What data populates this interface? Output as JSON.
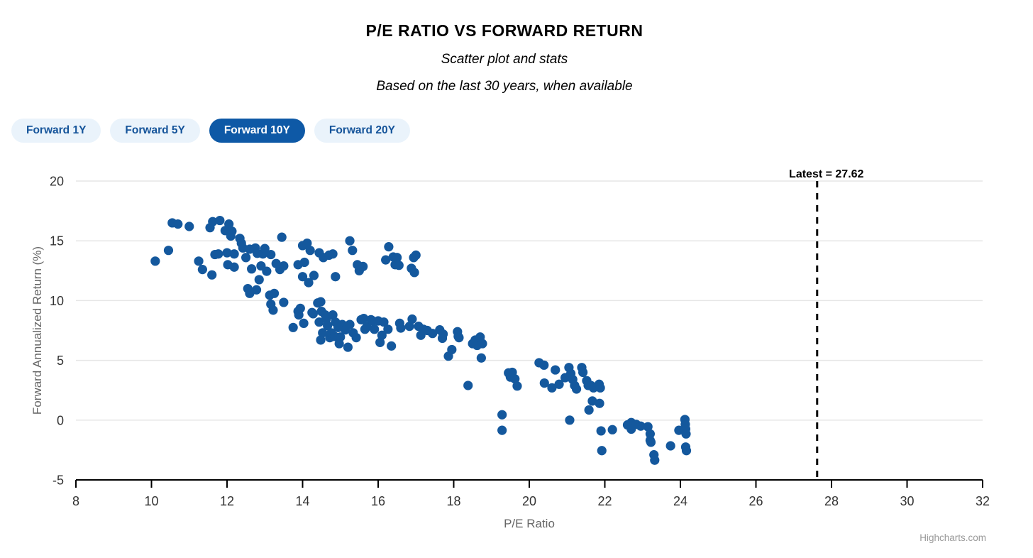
{
  "header": {
    "title": "P/E RATIO VS FORWARD RETURN",
    "subtitle1": "Scatter plot and stats",
    "subtitle2": "Based on the last 30 years, when available"
  },
  "toolbar": {
    "buttons": [
      {
        "label": "Forward 1Y",
        "selected": false
      },
      {
        "label": "Forward 5Y",
        "selected": false
      },
      {
        "label": "Forward 10Y",
        "selected": true
      },
      {
        "label": "Forward 20Y",
        "selected": false
      }
    ]
  },
  "colors": {
    "point": "#14589d",
    "button_selected_bg": "#0e59a6",
    "button_bg": "#eaf3fb",
    "button_text": "#15549a",
    "gridline": "#e6e6e6",
    "axis_line": "#000000",
    "tick_label": "#333333",
    "axis_title": "#666666",
    "plotline": "#000000",
    "credits": "#999999"
  },
  "credits_label": "Highcharts.com",
  "chart_data": {
    "type": "scatter",
    "title": "P/E RATIO VS FORWARD RETURN",
    "xlabel": "P/E Ratio",
    "ylabel": "Forward Annualized Return (%)",
    "xlim": [
      8,
      32
    ],
    "ylim": [
      -5,
      20
    ],
    "x_ticks": [
      8,
      10,
      12,
      14,
      16,
      18,
      20,
      22,
      24,
      26,
      28,
      30,
      32
    ],
    "y_ticks": [
      -5,
      0,
      5,
      10,
      15,
      20
    ],
    "grid": "horizontal-only",
    "legend": "none",
    "plotline": {
      "value": 27.62,
      "label": "Latest = 27.62",
      "style": "dashed"
    },
    "points": [
      [
        10.1,
        13.3
      ],
      [
        10.45,
        14.2
      ],
      [
        10.55,
        16.5
      ],
      [
        10.7,
        16.4
      ],
      [
        11.0,
        16.2
      ],
      [
        11.25,
        13.3
      ],
      [
        11.35,
        12.6
      ],
      [
        11.55,
        16.1
      ],
      [
        11.6,
        12.15
      ],
      [
        11.62,
        16.6
      ],
      [
        11.68,
        13.85
      ],
      [
        11.77,
        13.9
      ],
      [
        11.81,
        16.7
      ],
      [
        11.95,
        15.85
      ],
      [
        12.0,
        14.0
      ],
      [
        12.02,
        13.0
      ],
      [
        12.05,
        16.4
      ],
      [
        12.1,
        15.4
      ],
      [
        12.13,
        15.8
      ],
      [
        12.19,
        13.9
      ],
      [
        12.19,
        12.8
      ],
      [
        12.34,
        15.2
      ],
      [
        12.38,
        14.8
      ],
      [
        12.42,
        14.4
      ],
      [
        12.5,
        13.6
      ],
      [
        12.55,
        11.0
      ],
      [
        12.6,
        14.3
      ],
      [
        12.6,
        10.6
      ],
      [
        12.65,
        12.65
      ],
      [
        12.75,
        14.4
      ],
      [
        12.78,
        10.9
      ],
      [
        12.8,
        13.95
      ],
      [
        12.85,
        11.75
      ],
      [
        12.9,
        12.9
      ],
      [
        12.95,
        13.9
      ],
      [
        13.0,
        14.35
      ],
      [
        13.05,
        12.45
      ],
      [
        13.13,
        10.45
      ],
      [
        13.16,
        13.85
      ],
      [
        13.16,
        9.7
      ],
      [
        13.22,
        9.2
      ],
      [
        13.25,
        10.6
      ],
      [
        13.3,
        13.1
      ],
      [
        13.4,
        12.6
      ],
      [
        13.45,
        15.3
      ],
      [
        13.5,
        9.85
      ],
      [
        13.5,
        12.9
      ],
      [
        13.75,
        7.75
      ],
      [
        13.88,
        13.0
      ],
      [
        13.88,
        9.1
      ],
      [
        13.9,
        8.8
      ],
      [
        13.94,
        9.35
      ],
      [
        14.0,
        14.6
      ],
      [
        14.0,
        12.0
      ],
      [
        14.03,
        8.1
      ],
      [
        14.05,
        13.2
      ],
      [
        14.12,
        14.8
      ],
      [
        14.16,
        11.5
      ],
      [
        14.2,
        14.2
      ],
      [
        14.25,
        9.0
      ],
      [
        14.28,
        8.9
      ],
      [
        14.3,
        12.1
      ],
      [
        14.4,
        9.8
      ],
      [
        14.44,
        14.0
      ],
      [
        14.44,
        8.2
      ],
      [
        14.48,
        9.9
      ],
      [
        14.48,
        6.7
      ],
      [
        14.5,
        9.1
      ],
      [
        14.53,
        7.3
      ],
      [
        14.55,
        13.6
      ],
      [
        14.6,
        8.8
      ],
      [
        14.63,
        8.5
      ],
      [
        14.66,
        7.9
      ],
      [
        14.7,
        13.8
      ],
      [
        14.72,
        6.9
      ],
      [
        14.76,
        7.3
      ],
      [
        14.8,
        13.9
      ],
      [
        14.8,
        8.8
      ],
      [
        14.85,
        7.0
      ],
      [
        14.87,
        12.0
      ],
      [
        14.87,
        8.2
      ],
      [
        14.94,
        7.75
      ],
      [
        14.97,
        6.4
      ],
      [
        15.0,
        6.95
      ],
      [
        15.05,
        8.0
      ],
      [
        15.13,
        7.55
      ],
      [
        15.2,
        6.1
      ],
      [
        15.25,
        15.0
      ],
      [
        15.25,
        8.0
      ],
      [
        15.32,
        14.2
      ],
      [
        15.34,
        7.3
      ],
      [
        15.42,
        6.9
      ],
      [
        15.45,
        13.0
      ],
      [
        15.5,
        12.5
      ],
      [
        15.55,
        8.4
      ],
      [
        15.6,
        12.85
      ],
      [
        15.62,
        8.5
      ],
      [
        15.65,
        7.6
      ],
      [
        15.7,
        7.8
      ],
      [
        15.81,
        8.4
      ],
      [
        15.85,
        8.3
      ],
      [
        15.9,
        7.6
      ],
      [
        16.0,
        8.3
      ],
      [
        16.05,
        6.5
      ],
      [
        16.1,
        7.1
      ],
      [
        16.15,
        8.2
      ],
      [
        16.2,
        13.4
      ],
      [
        16.26,
        7.6
      ],
      [
        16.28,
        14.5
      ],
      [
        16.35,
        6.2
      ],
      [
        16.4,
        13.65
      ],
      [
        16.45,
        13.0
      ],
      [
        16.5,
        13.6
      ],
      [
        16.55,
        12.95
      ],
      [
        16.57,
        8.1
      ],
      [
        16.6,
        7.7
      ],
      [
        16.83,
        7.85
      ],
      [
        16.88,
        12.7
      ],
      [
        16.9,
        8.45
      ],
      [
        16.94,
        13.6
      ],
      [
        16.96,
        12.35
      ],
      [
        17.0,
        13.8
      ],
      [
        17.07,
        7.85
      ],
      [
        17.13,
        7.1
      ],
      [
        17.2,
        7.6
      ],
      [
        17.3,
        7.5
      ],
      [
        17.44,
        7.25
      ],
      [
        17.63,
        7.55
      ],
      [
        17.7,
        6.85
      ],
      [
        17.72,
        7.2
      ],
      [
        17.86,
        5.35
      ],
      [
        17.95,
        5.9
      ],
      [
        18.1,
        7.4
      ],
      [
        18.12,
        7.0
      ],
      [
        18.14,
        6.9
      ],
      [
        18.38,
        2.9
      ],
      [
        18.5,
        6.4
      ],
      [
        18.57,
        6.7
      ],
      [
        18.62,
        6.25
      ],
      [
        18.7,
        6.95
      ],
      [
        18.73,
        5.2
      ],
      [
        18.76,
        6.4
      ],
      [
        19.28,
        0.45
      ],
      [
        19.28,
        -0.85
      ],
      [
        19.45,
        3.95
      ],
      [
        19.5,
        3.6
      ],
      [
        19.55,
        4.0
      ],
      [
        19.62,
        3.45
      ],
      [
        19.68,
        2.85
      ],
      [
        20.26,
        4.8
      ],
      [
        20.39,
        4.6
      ],
      [
        20.4,
        3.1
      ],
      [
        20.6,
        2.7
      ],
      [
        20.69,
        4.2
      ],
      [
        20.79,
        3.0
      ],
      [
        20.95,
        3.55
      ],
      [
        21.05,
        4.4
      ],
      [
        21.07,
        0.0
      ],
      [
        21.1,
        3.9
      ],
      [
        21.15,
        3.4
      ],
      [
        21.2,
        2.9
      ],
      [
        21.25,
        2.6
      ],
      [
        21.39,
        4.4
      ],
      [
        21.42,
        4.0
      ],
      [
        21.52,
        3.3
      ],
      [
        21.56,
        2.9
      ],
      [
        21.63,
        2.9
      ],
      [
        21.67,
        1.6
      ],
      [
        21.7,
        2.7
      ],
      [
        21.58,
        0.85
      ],
      [
        21.85,
        3.0
      ],
      [
        21.88,
        2.7
      ],
      [
        21.86,
        1.4
      ],
      [
        21.9,
        -0.9
      ],
      [
        21.92,
        -2.55
      ],
      [
        22.2,
        -0.8
      ],
      [
        22.6,
        -0.4
      ],
      [
        22.7,
        -0.2
      ],
      [
        22.7,
        -0.75
      ],
      [
        22.83,
        -0.35
      ],
      [
        22.95,
        -0.5
      ],
      [
        23.14,
        -0.55
      ],
      [
        23.2,
        -1.15
      ],
      [
        23.2,
        -1.7
      ],
      [
        23.22,
        -1.85
      ],
      [
        23.3,
        -2.9
      ],
      [
        23.32,
        -3.35
      ],
      [
        23.74,
        -2.15
      ],
      [
        23.96,
        -0.85
      ],
      [
        24.12,
        0.05
      ],
      [
        24.13,
        -0.35
      ],
      [
        24.14,
        -0.75
      ],
      [
        24.15,
        -1.15
      ],
      [
        24.14,
        -2.25
      ],
      [
        24.16,
        -2.55
      ]
    ]
  }
}
